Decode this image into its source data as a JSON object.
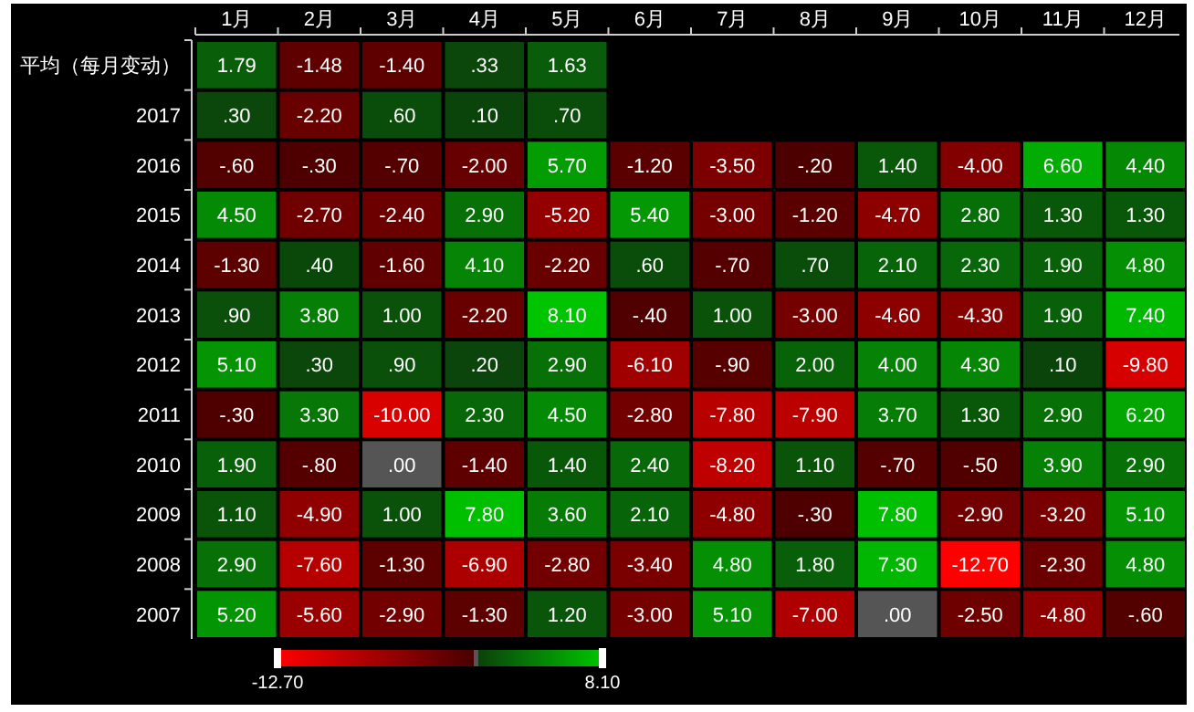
{
  "chart_data": {
    "type": "heatmap",
    "categories": [
      "1月",
      "2月",
      "3月",
      "4月",
      "5月",
      "6月",
      "7月",
      "8月",
      "9月",
      "10月",
      "11月",
      "12月"
    ],
    "y_categories": [
      "平均（每月变动）",
      "2017",
      "2016",
      "2015",
      "2014",
      "2013",
      "2012",
      "2011",
      "2010",
      "2009",
      "2008",
      "2007"
    ],
    "cells": [
      [
        1.79,
        -1.48,
        -1.4,
        0.33,
        1.63,
        null,
        null,
        null,
        null,
        null,
        null,
        null
      ],
      [
        0.3,
        -2.2,
        0.6,
        0.1,
        0.7,
        null,
        null,
        null,
        null,
        null,
        null,
        null
      ],
      [
        -0.6,
        -0.3,
        -0.7,
        -2.0,
        5.7,
        -1.2,
        -3.5,
        -0.2,
        1.4,
        -4.0,
        6.6,
        4.4
      ],
      [
        4.5,
        -2.7,
        -2.4,
        2.9,
        -5.2,
        5.4,
        -3.0,
        -1.2,
        -4.7,
        2.8,
        1.3,
        1.3
      ],
      [
        -1.3,
        0.4,
        -1.6,
        4.1,
        -2.2,
        0.6,
        -0.7,
        0.7,
        2.1,
        2.3,
        1.9,
        4.8
      ],
      [
        0.9,
        3.8,
        1.0,
        -2.2,
        8.1,
        -0.4,
        1.0,
        -3.0,
        -4.6,
        -4.3,
        1.9,
        7.4
      ],
      [
        5.1,
        0.3,
        0.9,
        0.2,
        2.9,
        -6.1,
        -0.9,
        2.0,
        4.0,
        4.3,
        0.1,
        -9.8
      ],
      [
        -0.3,
        3.3,
        -10.0,
        2.3,
        4.5,
        -2.8,
        -7.8,
        -7.9,
        3.7,
        1.3,
        2.9,
        6.2
      ],
      [
        1.9,
        -0.8,
        0.0,
        -1.4,
        1.4,
        2.4,
        -8.2,
        1.1,
        -0.7,
        -0.5,
        3.9,
        2.9
      ],
      [
        1.1,
        -4.9,
        1.0,
        7.8,
        3.6,
        2.1,
        -4.8,
        -0.3,
        7.8,
        -2.9,
        -3.2,
        5.1
      ],
      [
        2.9,
        -7.6,
        -1.3,
        -6.9,
        -2.8,
        -3.4,
        4.8,
        1.8,
        7.3,
        -12.7,
        -2.3,
        4.8
      ],
      [
        5.2,
        -5.6,
        -2.9,
        -1.3,
        1.2,
        -3.0,
        5.1,
        -7.0,
        0.0,
        -2.5,
        -4.8,
        -0.6
      ]
    ],
    "cell_labels": [
      [
        "1.79",
        "-1.48",
        "-1.40",
        ".33",
        "1.63",
        null,
        null,
        null,
        null,
        null,
        null,
        null
      ],
      [
        ".30",
        "-2.20",
        ".60",
        ".10",
        ".70",
        null,
        null,
        null,
        null,
        null,
        null,
        null
      ],
      [
        "-.60",
        "-.30",
        "-.70",
        "-2.00",
        "5.70",
        "-1.20",
        "-3.50",
        "-.20",
        "1.40",
        "-4.00",
        "6.60",
        "4.40"
      ],
      [
        "4.50",
        "-2.70",
        "-2.40",
        "2.90",
        "-5.20",
        "5.40",
        "-3.00",
        "-1.20",
        "-4.70",
        "2.80",
        "1.30",
        "1.30"
      ],
      [
        "-1.30",
        ".40",
        "-1.60",
        "4.10",
        "-2.20",
        ".60",
        "-.70",
        ".70",
        "2.10",
        "2.30",
        "1.90",
        "4.80"
      ],
      [
        ".90",
        "3.80",
        "1.00",
        "-2.20",
        "8.10",
        "-.40",
        "1.00",
        "-3.00",
        "-4.60",
        "-4.30",
        "1.90",
        "7.40"
      ],
      [
        "5.10",
        ".30",
        ".90",
        ".20",
        "2.90",
        "-6.10",
        "-.90",
        "2.00",
        "4.00",
        "4.30",
        ".10",
        "-9.80"
      ],
      [
        "-.30",
        "3.30",
        "-10.00",
        "2.30",
        "4.50",
        "-2.80",
        "-7.80",
        "-7.90",
        "3.70",
        "1.30",
        "2.90",
        "6.20"
      ],
      [
        "1.90",
        "-.80",
        ".00",
        "-1.40",
        "1.40",
        "2.40",
        "-8.20",
        "1.10",
        "-.70",
        "-.50",
        "3.90",
        "2.90"
      ],
      [
        "1.10",
        "-4.90",
        "1.00",
        "7.80",
        "3.60",
        "2.10",
        "-4.80",
        "-.30",
        "7.80",
        "-2.90",
        "-3.20",
        "5.10"
      ],
      [
        "2.90",
        "-7.60",
        "-1.30",
        "-6.90",
        "-2.80",
        "-3.40",
        "4.80",
        "1.80",
        "7.30",
        "-12.70",
        "-2.30",
        "4.80"
      ],
      [
        "5.20",
        "-5.60",
        "-2.90",
        "-1.30",
        "1.20",
        "-3.00",
        "5.10",
        "-7.00",
        ".00",
        "-2.50",
        "-4.80",
        "-.60"
      ]
    ],
    "clim": [
      -12.7,
      8.1
    ],
    "cticks": [
      {
        "value": -12.7,
        "label": "-12.70"
      },
      {
        "value": 8.1,
        "label": "8.10"
      }
    ]
  }
}
